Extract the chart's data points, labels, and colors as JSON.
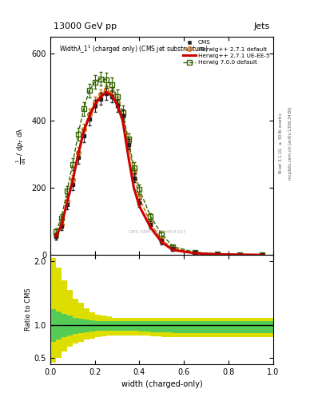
{
  "title_top": "13000 GeV pp",
  "title_right": "Jets",
  "xlabel": "width (charged-only)",
  "ylabel_main": "$\\frac{1}{\\mathrm{d}N} / \\mathrm{d}p_T\\, \\mathrm{d}\\lambda$",
  "ylabel_ratio": "Ratio to CMS",
  "right_label1": "Rivet 3.1.10, $\\geq$ 500k events",
  "right_label2": "mcplots.cern.ch [arXiv:1306.3436]",
  "watermark": "CMS-SMP-21-TH904197",
  "cms_x": [
    0.025,
    0.05,
    0.075,
    0.1,
    0.125,
    0.15,
    0.175,
    0.2,
    0.225,
    0.25,
    0.275,
    0.3,
    0.325,
    0.35,
    0.375,
    0.4,
    0.45,
    0.5,
    0.55,
    0.65,
    0.75,
    0.85,
    0.95
  ],
  "cms_y": [
    55,
    85,
    150,
    210,
    290,
    355,
    405,
    445,
    465,
    480,
    472,
    445,
    415,
    330,
    230,
    155,
    90,
    40,
    18,
    7,
    2,
    1,
    0
  ],
  "cms_yerr": [
    10,
    12,
    14,
    16,
    18,
    18,
    18,
    18,
    18,
    18,
    18,
    18,
    18,
    16,
    14,
    12,
    10,
    8,
    5,
    3,
    2,
    1,
    0.5
  ],
  "hd_x": [
    0.025,
    0.05,
    0.075,
    0.1,
    0.125,
    0.15,
    0.175,
    0.2,
    0.225,
    0.25,
    0.275,
    0.3,
    0.325,
    0.35,
    0.375,
    0.4,
    0.45,
    0.5,
    0.55,
    0.65,
    0.75,
    0.85,
    0.95
  ],
  "hd_y": [
    58,
    90,
    160,
    225,
    305,
    375,
    420,
    455,
    478,
    492,
    482,
    455,
    415,
    335,
    245,
    170,
    95,
    45,
    20,
    7,
    2,
    1,
    0
  ],
  "hd_yerr": [
    8,
    10,
    12,
    14,
    16,
    16,
    16,
    16,
    16,
    16,
    16,
    16,
    16,
    14,
    12,
    10,
    8,
    6,
    4,
    2,
    1,
    0.5,
    0.3
  ],
  "hue_x": [
    0.025,
    0.05,
    0.075,
    0.1,
    0.125,
    0.15,
    0.175,
    0.2,
    0.225,
    0.25,
    0.275,
    0.3,
    0.325,
    0.35,
    0.375,
    0.4,
    0.45,
    0.5,
    0.55,
    0.65,
    0.75,
    0.85,
    0.95
  ],
  "hue_y": [
    55,
    88,
    155,
    220,
    298,
    368,
    412,
    448,
    470,
    485,
    476,
    448,
    400,
    295,
    200,
    145,
    82,
    38,
    15,
    5,
    2,
    1,
    0
  ],
  "h7_x": [
    0.025,
    0.05,
    0.075,
    0.1,
    0.125,
    0.15,
    0.175,
    0.2,
    0.225,
    0.25,
    0.275,
    0.3,
    0.325,
    0.35,
    0.375,
    0.4,
    0.45,
    0.5,
    0.55,
    0.65,
    0.75,
    0.85,
    0.95
  ],
  "h7_y": [
    70,
    110,
    190,
    270,
    360,
    435,
    490,
    515,
    525,
    522,
    508,
    472,
    425,
    345,
    260,
    195,
    115,
    62,
    25,
    8,
    3,
    1,
    0
  ],
  "h7_yerr": [
    10,
    12,
    16,
    18,
    20,
    20,
    20,
    20,
    20,
    20,
    20,
    20,
    20,
    18,
    16,
    14,
    10,
    8,
    5,
    3,
    2,
    1,
    0.5
  ],
  "xlim": [
    0,
    1
  ],
  "ylim_main": [
    0,
    650
  ],
  "ylim_ratio": [
    0.4,
    2.1
  ],
  "yticks_main": [
    0,
    200,
    400,
    600
  ],
  "yticks_ratio": [
    0.5,
    1.0,
    2.0
  ],
  "color_cms": "#222222",
  "color_hd": "#cc6600",
  "color_hue": "#cc0000",
  "color_h7": "#336600",
  "color_ratio_green": "#55cc55",
  "color_ratio_yellow": "#dddd00",
  "ratio_x_edges": [
    0.0,
    0.025,
    0.05,
    0.075,
    0.1,
    0.125,
    0.15,
    0.175,
    0.2,
    0.225,
    0.25,
    0.275,
    0.3,
    0.325,
    0.35,
    0.375,
    0.4,
    0.45,
    0.5,
    0.55,
    0.65,
    0.75,
    0.85,
    0.95,
    1.0
  ],
  "ratio_yg_lo": [
    0.75,
    0.78,
    0.82,
    0.85,
    0.87,
    0.88,
    0.9,
    0.91,
    0.92,
    0.92,
    0.92,
    0.92,
    0.92,
    0.92,
    0.92,
    0.92,
    0.91,
    0.9,
    0.89,
    0.88,
    0.88,
    0.88,
    0.88,
    0.88
  ],
  "ratio_yg_hi": [
    1.25,
    1.22,
    1.18,
    1.15,
    1.12,
    1.1,
    1.09,
    1.08,
    1.07,
    1.07,
    1.07,
    1.07,
    1.07,
    1.07,
    1.07,
    1.07,
    1.07,
    1.07,
    1.07,
    1.07,
    1.07,
    1.07,
    1.07,
    1.07
  ],
  "ratio_yy_lo": [
    0.42,
    0.5,
    0.6,
    0.67,
    0.72,
    0.75,
    0.78,
    0.8,
    0.82,
    0.83,
    0.84,
    0.85,
    0.85,
    0.85,
    0.85,
    0.85,
    0.84,
    0.83,
    0.82,
    0.82,
    0.82,
    0.82,
    0.82,
    0.82
  ],
  "ratio_yy_hi": [
    2.05,
    1.9,
    1.7,
    1.55,
    1.42,
    1.35,
    1.27,
    1.2,
    1.17,
    1.15,
    1.14,
    1.12,
    1.12,
    1.12,
    1.12,
    1.12,
    1.12,
    1.12,
    1.12,
    1.12,
    1.12,
    1.12,
    1.12,
    1.12
  ]
}
